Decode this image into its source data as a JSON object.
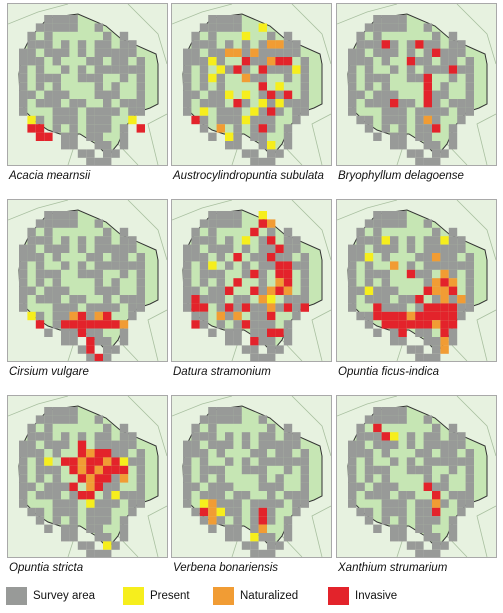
{
  "colors": {
    "survey": "#989a98",
    "present": "#f6ee1d",
    "naturalized": "#f19c34",
    "invasive": "#e3232b",
    "land": "#c6e6b4",
    "background": "#e7f2e0",
    "border": "#333333"
  },
  "legend": [
    {
      "key": "survey",
      "label": "Survey area"
    },
    {
      "key": "present",
      "label": "Present"
    },
    {
      "key": "naturalized",
      "label": "Naturalized"
    },
    {
      "key": "invasive",
      "label": "Invasive"
    }
  ],
  "panels": [
    {
      "species": "Acacia mearnsii",
      "cells": [
        [
          1,
          12,
          "present"
        ],
        [
          1,
          13,
          "invasive"
        ],
        [
          2,
          13,
          "invasive"
        ],
        [
          2,
          14,
          "invasive"
        ],
        [
          3,
          14,
          "invasive"
        ],
        [
          14,
          13,
          "invasive"
        ],
        [
          13,
          12,
          "present"
        ]
      ]
    },
    {
      "species": "Austrocylindropuntia subulata",
      "cells": [
        [
          9,
          1,
          "present"
        ],
        [
          7,
          2,
          "present"
        ],
        [
          10,
          3,
          "naturalized"
        ],
        [
          11,
          3,
          "naturalized"
        ],
        [
          3,
          5,
          "present"
        ],
        [
          5,
          4,
          "naturalized"
        ],
        [
          6,
          4,
          "naturalized"
        ],
        [
          7,
          5,
          "invasive"
        ],
        [
          8,
          4,
          "naturalized"
        ],
        [
          10,
          5,
          "naturalized"
        ],
        [
          11,
          5,
          "invasive"
        ],
        [
          12,
          5,
          "invasive"
        ],
        [
          4,
          6,
          "present"
        ],
        [
          6,
          6,
          "invasive"
        ],
        [
          9,
          6,
          "invasive"
        ],
        [
          13,
          6,
          "present"
        ],
        [
          3,
          7,
          "present"
        ],
        [
          7,
          7,
          "naturalized"
        ],
        [
          9,
          8,
          "invasive"
        ],
        [
          11,
          8,
          "present"
        ],
        [
          5,
          9,
          "present"
        ],
        [
          7,
          9,
          "present"
        ],
        [
          10,
          9,
          "invasive"
        ],
        [
          12,
          9,
          "invasive"
        ],
        [
          6,
          10,
          "invasive"
        ],
        [
          9,
          10,
          "present"
        ],
        [
          11,
          10,
          "present"
        ],
        [
          2,
          11,
          "present"
        ],
        [
          8,
          11,
          "present"
        ],
        [
          10,
          11,
          "invasive"
        ],
        [
          1,
          12,
          "invasive"
        ],
        [
          7,
          12,
          "present"
        ],
        [
          4,
          13,
          "naturalized"
        ],
        [
          9,
          13,
          "invasive"
        ],
        [
          5,
          14,
          "present"
        ],
        [
          10,
          15,
          "present"
        ]
      ]
    },
    {
      "species": "Bryophyllum delagoense",
      "cells": [
        [
          4,
          3,
          "invasive"
        ],
        [
          8,
          3,
          "invasive"
        ],
        [
          10,
          4,
          "invasive"
        ],
        [
          7,
          5,
          "invasive"
        ],
        [
          12,
          6,
          "invasive"
        ],
        [
          9,
          7,
          "invasive"
        ],
        [
          9,
          8,
          "invasive"
        ],
        [
          9,
          9,
          "invasive"
        ],
        [
          9,
          10,
          "invasive"
        ],
        [
          5,
          10,
          "invasive"
        ],
        [
          9,
          12,
          "naturalized"
        ],
        [
          10,
          13,
          "invasive"
        ]
      ]
    },
    {
      "species": "Cirsium vulgare",
      "cells": [
        [
          1,
          12,
          "present"
        ],
        [
          2,
          13,
          "invasive"
        ],
        [
          6,
          12,
          "naturalized"
        ],
        [
          7,
          12,
          "invasive"
        ],
        [
          9,
          12,
          "naturalized"
        ],
        [
          10,
          12,
          "invasive"
        ],
        [
          5,
          13,
          "invasive"
        ],
        [
          6,
          13,
          "invasive"
        ],
        [
          7,
          13,
          "invasive"
        ],
        [
          8,
          13,
          "invasive"
        ],
        [
          9,
          13,
          "invasive"
        ],
        [
          10,
          13,
          "invasive"
        ],
        [
          11,
          13,
          "invasive"
        ],
        [
          12,
          13,
          "naturalized"
        ],
        [
          7,
          14,
          "invasive"
        ],
        [
          8,
          15,
          "invasive"
        ],
        [
          8,
          16,
          "invasive"
        ],
        [
          9,
          17,
          "invasive"
        ]
      ]
    },
    {
      "species": "Datura stramonium",
      "cells": [
        [
          9,
          0,
          "present"
        ],
        [
          9,
          1,
          "invasive"
        ],
        [
          10,
          1,
          "naturalized"
        ],
        [
          8,
          2,
          "invasive"
        ],
        [
          7,
          3,
          "present"
        ],
        [
          10,
          3,
          "invasive"
        ],
        [
          11,
          4,
          "invasive"
        ],
        [
          6,
          5,
          "invasive"
        ],
        [
          10,
          5,
          "invasive"
        ],
        [
          3,
          6,
          "present"
        ],
        [
          11,
          6,
          "invasive"
        ],
        [
          12,
          6,
          "invasive"
        ],
        [
          8,
          7,
          "invasive"
        ],
        [
          11,
          7,
          "invasive"
        ],
        [
          12,
          7,
          "invasive"
        ],
        [
          6,
          8,
          "invasive"
        ],
        [
          11,
          8,
          "naturalized"
        ],
        [
          12,
          8,
          "invasive"
        ],
        [
          5,
          9,
          "invasive"
        ],
        [
          8,
          9,
          "invasive"
        ],
        [
          10,
          9,
          "naturalized"
        ],
        [
          11,
          9,
          "invasive"
        ],
        [
          12,
          9,
          "naturalized"
        ],
        [
          1,
          10,
          "invasive"
        ],
        [
          9,
          10,
          "naturalized"
        ],
        [
          10,
          10,
          "present"
        ],
        [
          1,
          11,
          "invasive"
        ],
        [
          2,
          11,
          "invasive"
        ],
        [
          5,
          11,
          "invasive"
        ],
        [
          7,
          11,
          "invasive"
        ],
        [
          10,
          11,
          "naturalized"
        ],
        [
          12,
          11,
          "invasive"
        ],
        [
          14,
          11,
          "invasive"
        ],
        [
          4,
          12,
          "naturalized"
        ],
        [
          6,
          12,
          "naturalized"
        ],
        [
          10,
          12,
          "invasive"
        ],
        [
          1,
          13,
          "invasive"
        ],
        [
          7,
          13,
          "invasive"
        ],
        [
          10,
          14,
          "invasive"
        ],
        [
          11,
          14,
          "invasive"
        ],
        [
          8,
          15,
          "invasive"
        ]
      ]
    },
    {
      "species": "Opuntia ficus-indica",
      "cells": [
        [
          4,
          3,
          "present"
        ],
        [
          11,
          3,
          "present"
        ],
        [
          2,
          5,
          "present"
        ],
        [
          5,
          6,
          "naturalized"
        ],
        [
          10,
          5,
          "naturalized"
        ],
        [
          7,
          7,
          "invasive"
        ],
        [
          11,
          7,
          "naturalized"
        ],
        [
          10,
          8,
          "naturalized"
        ],
        [
          11,
          8,
          "invasive"
        ],
        [
          12,
          8,
          "naturalized"
        ],
        [
          2,
          9,
          "present"
        ],
        [
          9,
          9,
          "invasive"
        ],
        [
          10,
          9,
          "naturalized"
        ],
        [
          11,
          9,
          "naturalized"
        ],
        [
          12,
          9,
          "invasive"
        ],
        [
          8,
          10,
          "invasive"
        ],
        [
          11,
          10,
          "naturalized"
        ],
        [
          13,
          10,
          "naturalized"
        ],
        [
          3,
          11,
          "invasive"
        ],
        [
          9,
          11,
          "invasive"
        ],
        [
          10,
          11,
          "invasive"
        ],
        [
          11,
          11,
          "invasive"
        ],
        [
          12,
          11,
          "invasive"
        ],
        [
          3,
          12,
          "invasive"
        ],
        [
          4,
          12,
          "invasive"
        ],
        [
          5,
          12,
          "invasive"
        ],
        [
          6,
          12,
          "invasive"
        ],
        [
          7,
          12,
          "naturalized"
        ],
        [
          8,
          12,
          "invasive"
        ],
        [
          9,
          12,
          "invasive"
        ],
        [
          10,
          12,
          "invasive"
        ],
        [
          11,
          12,
          "invasive"
        ],
        [
          12,
          12,
          "invasive"
        ],
        [
          4,
          13,
          "invasive"
        ],
        [
          5,
          13,
          "invasive"
        ],
        [
          6,
          13,
          "invasive"
        ],
        [
          7,
          13,
          "invasive"
        ],
        [
          8,
          13,
          "invasive"
        ],
        [
          9,
          13,
          "invasive"
        ],
        [
          10,
          13,
          "naturalized"
        ],
        [
          11,
          13,
          "invasive"
        ],
        [
          12,
          13,
          "invasive"
        ],
        [
          6,
          14,
          "invasive"
        ],
        [
          11,
          14,
          "invasive"
        ],
        [
          11,
          15,
          "naturalized"
        ],
        [
          11,
          16,
          "naturalized"
        ]
      ]
    },
    {
      "species": "Opuntia stricta",
      "cells": [
        [
          7,
          4,
          "invasive"
        ],
        [
          9,
          5,
          "invasive"
        ],
        [
          8,
          5,
          "naturalized"
        ],
        [
          7,
          5,
          "invasive"
        ],
        [
          10,
          5,
          "invasive"
        ],
        [
          6,
          6,
          "invasive"
        ],
        [
          7,
          6,
          "naturalized"
        ],
        [
          8,
          6,
          "invasive"
        ],
        [
          9,
          6,
          "invasive"
        ],
        [
          10,
          6,
          "naturalized"
        ],
        [
          11,
          6,
          "invasive"
        ],
        [
          12,
          6,
          "present"
        ],
        [
          3,
          6,
          "present"
        ],
        [
          5,
          6,
          "invasive"
        ],
        [
          6,
          7,
          "invasive"
        ],
        [
          7,
          7,
          "naturalized"
        ],
        [
          8,
          7,
          "invasive"
        ],
        [
          9,
          7,
          "naturalized"
        ],
        [
          10,
          7,
          "invasive"
        ],
        [
          11,
          7,
          "invasive"
        ],
        [
          12,
          7,
          "invasive"
        ],
        [
          7,
          8,
          "invasive"
        ],
        [
          8,
          8,
          "naturalized"
        ],
        [
          9,
          8,
          "invasive"
        ],
        [
          10,
          8,
          "invasive"
        ],
        [
          12,
          8,
          "naturalized"
        ],
        [
          6,
          9,
          "invasive"
        ],
        [
          8,
          9,
          "naturalized"
        ],
        [
          9,
          9,
          "invasive"
        ],
        [
          7,
          10,
          "invasive"
        ],
        [
          8,
          10,
          "invasive"
        ],
        [
          11,
          10,
          "present"
        ],
        [
          8,
          11,
          "present"
        ],
        [
          10,
          16,
          "present"
        ]
      ]
    },
    {
      "species": "Verbena bonariensis",
      "cells": [
        [
          2,
          11,
          "present"
        ],
        [
          3,
          11,
          "naturalized"
        ],
        [
          2,
          12,
          "invasive"
        ],
        [
          3,
          12,
          "naturalized"
        ],
        [
          4,
          12,
          "present"
        ],
        [
          9,
          12,
          "invasive"
        ],
        [
          9,
          13,
          "invasive"
        ],
        [
          3,
          13,
          "naturalized"
        ],
        [
          9,
          14,
          "naturalized"
        ],
        [
          8,
          15,
          "present"
        ]
      ]
    },
    {
      "species": "Xanthium strumarium",
      "cells": [
        [
          3,
          2,
          "invasive"
        ],
        [
          4,
          3,
          "invasive"
        ],
        [
          5,
          3,
          "present"
        ],
        [
          9,
          9,
          "invasive"
        ],
        [
          10,
          10,
          "invasive"
        ],
        [
          10,
          11,
          "naturalized"
        ],
        [
          10,
          12,
          "invasive"
        ]
      ]
    }
  ]
}
